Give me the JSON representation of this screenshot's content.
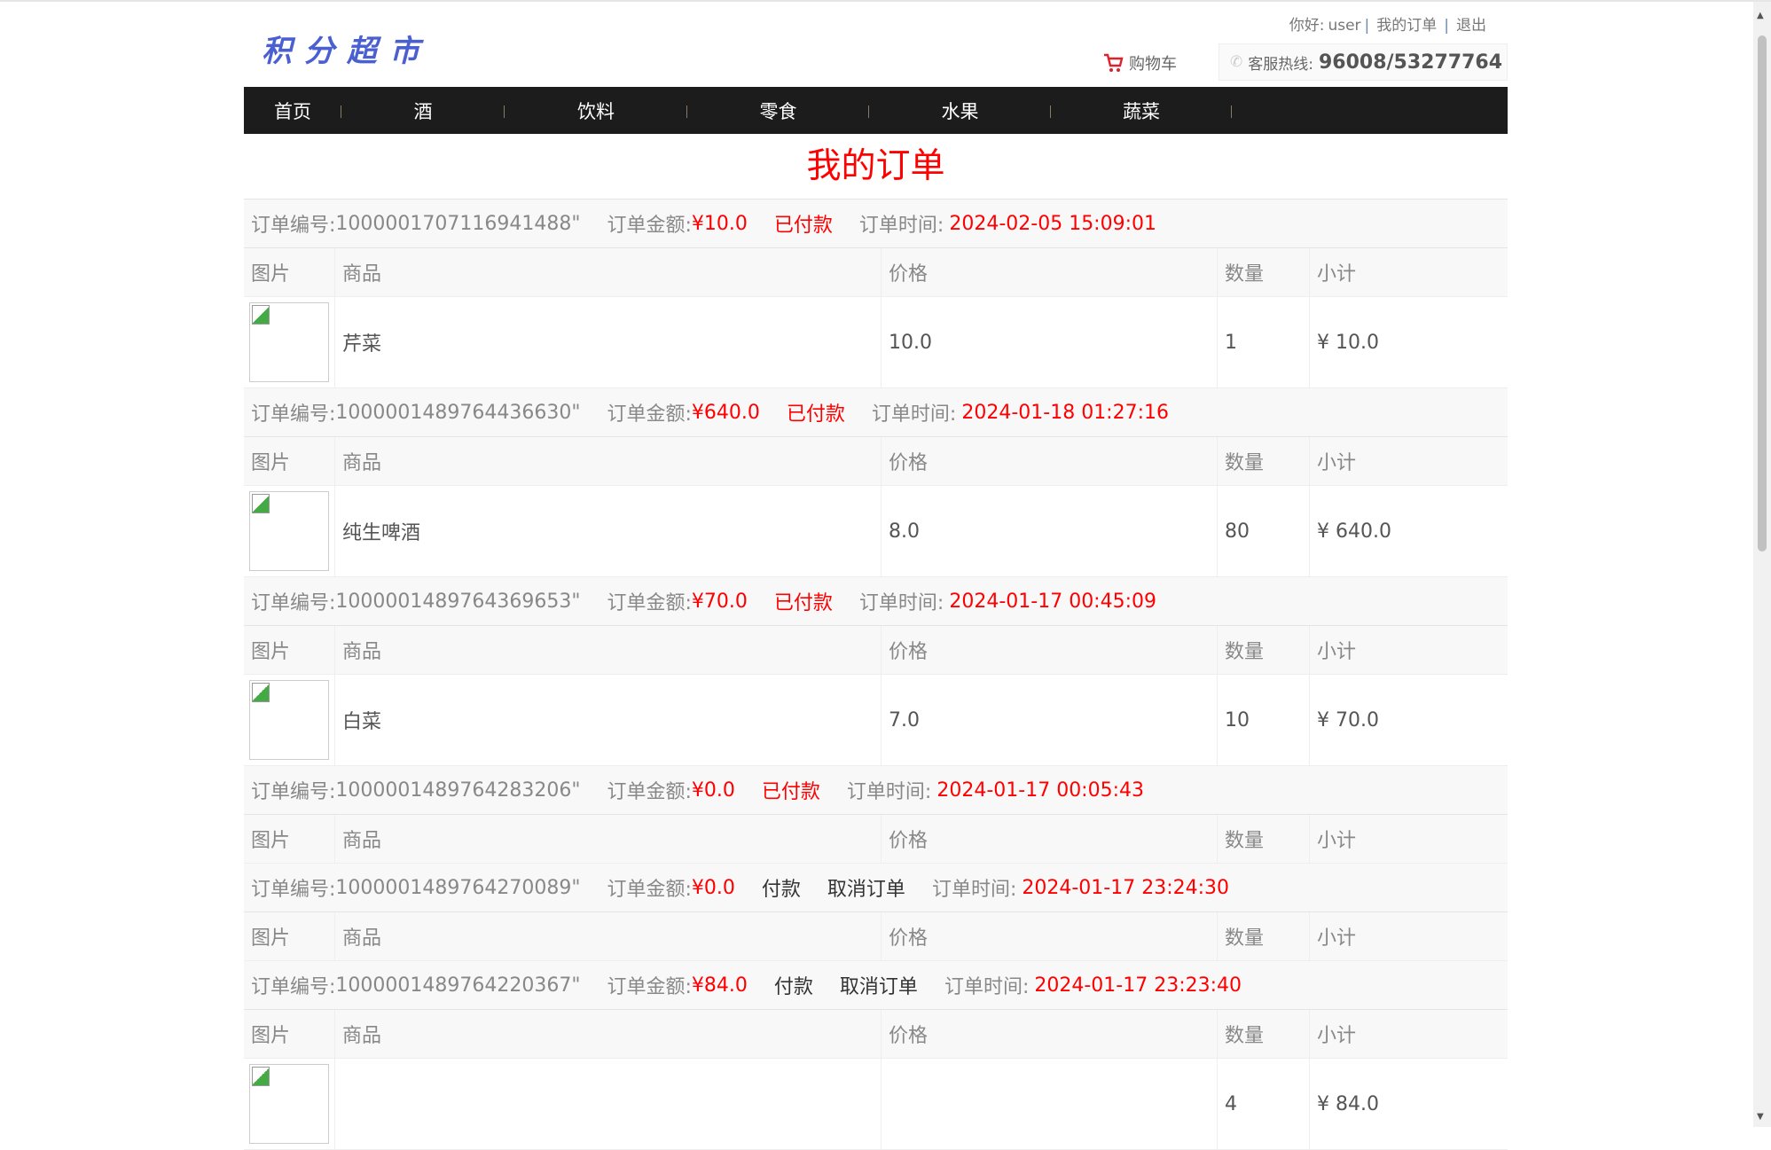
{
  "header": {
    "greeting": "你好:",
    "user": "user",
    "my_orders": "我的订单",
    "logout": "退出",
    "logo": "积分超市",
    "cart": "购物车",
    "hotline_label": "客服热线:",
    "hotline_number": "96008/53277764"
  },
  "nav": [
    "首页",
    "酒",
    "饮料",
    "零食",
    "水果",
    "蔬菜"
  ],
  "page_title": "我的订单",
  "labels": {
    "order_no": "订单编号:",
    "amount": "订单金额:",
    "time": "订单时间:",
    "pay": "付款",
    "cancel": "取消订单"
  },
  "columns": [
    "图片",
    "商品",
    "价格",
    "数量",
    "小计"
  ],
  "orders": [
    {
      "no": "1000001707116941488\"",
      "amount": "¥10.0",
      "status": "已付款",
      "time": "2024-02-05 15:09:01",
      "items": [
        {
          "name": "芹菜",
          "price": "10.0",
          "qty": "1",
          "subtotal": "¥ 10.0"
        }
      ]
    },
    {
      "no": "1000001489764436630\"",
      "amount": "¥640.0",
      "status": "已付款",
      "time": "2024-01-18 01:27:16",
      "items": [
        {
          "name": "纯生啤酒",
          "price": "8.0",
          "qty": "80",
          "subtotal": "¥ 640.0"
        }
      ]
    },
    {
      "no": "1000001489764369653\"",
      "amount": "¥70.0",
      "status": "已付款",
      "time": "2024-01-17 00:45:09",
      "items": [
        {
          "name": "白菜",
          "price": "7.0",
          "qty": "10",
          "subtotal": "¥ 70.0"
        }
      ]
    },
    {
      "no": "1000001489764283206\"",
      "amount": "¥0.0",
      "status": "已付款",
      "time": "2024-01-17 00:05:43",
      "items": []
    },
    {
      "no": "1000001489764270089\"",
      "amount": "¥0.0",
      "status": "",
      "time": "2024-01-17 23:24:30",
      "items": []
    },
    {
      "no": "1000001489764220367\"",
      "amount": "¥84.0",
      "status": "",
      "time": "2024-01-17 23:23:40",
      "items": [
        {
          "name": "",
          "price": "",
          "qty": "4",
          "subtotal": "¥ 84.0"
        }
      ]
    }
  ],
  "colors": {
    "accent": "#ff0000",
    "nav_bg": "#1c1c1c",
    "logo": "#4a5fd0"
  }
}
